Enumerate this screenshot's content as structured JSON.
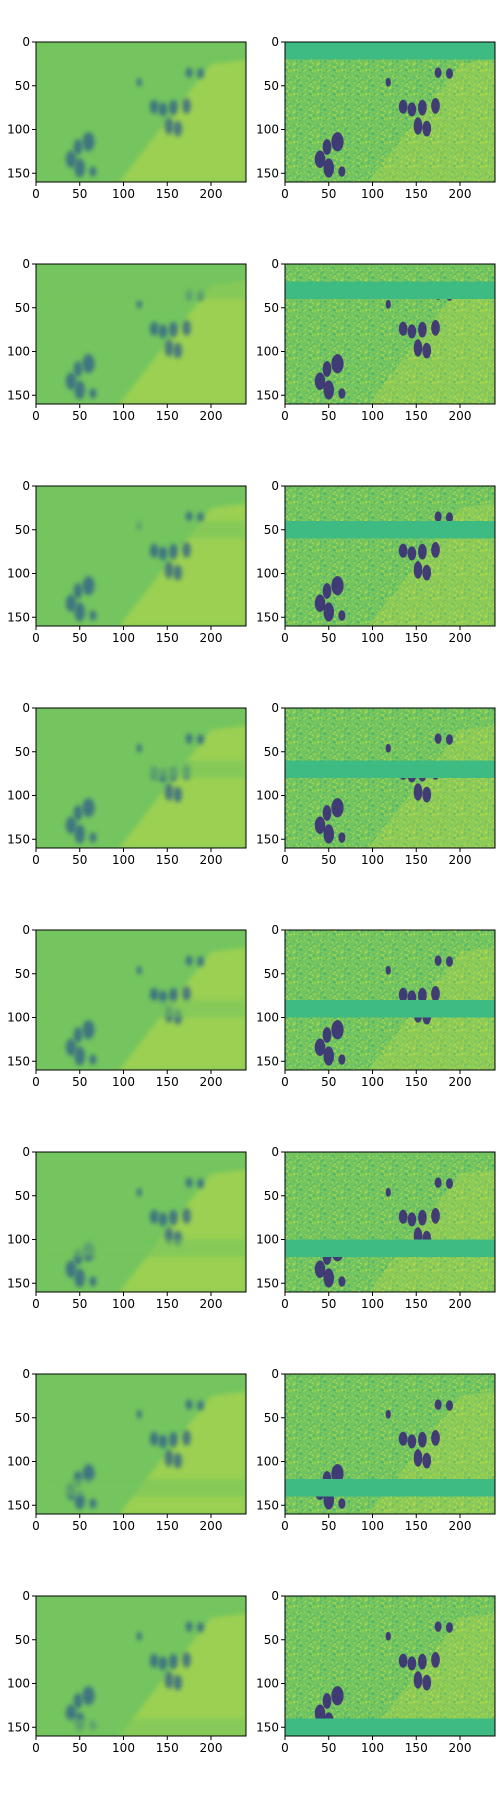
{
  "figure": {
    "rows": 8,
    "cols": 2,
    "colormap": "viridis",
    "background": "#ffffff"
  },
  "chart_data": {
    "type": "heatmap",
    "title": "",
    "xlabel": "",
    "ylabel": "",
    "image_shape": [
      160,
      240
    ],
    "x_ticks": [
      0,
      50,
      100,
      150,
      200
    ],
    "y_ticks": [
      0,
      50,
      100,
      150
    ],
    "xlim": [
      0,
      240
    ],
    "ylim": [
      160,
      0
    ],
    "colors": {
      "background": "#74c55f",
      "band": "#3dbb82",
      "bright": "#e3e53a",
      "dark": "#2d5b8c",
      "darkest": "#3a2c78",
      "mid": "#2aa57f"
    },
    "blobs": [
      [
        118,
        46,
        3,
        5
      ],
      [
        135,
        74,
        5,
        8
      ],
      [
        145,
        77,
        5,
        8
      ],
      [
        157,
        75,
        5,
        9
      ],
      [
        172,
        73,
        5,
        9
      ],
      [
        152,
        96,
        5,
        10
      ],
      [
        162,
        99,
        5,
        9
      ],
      [
        175,
        35,
        4,
        6
      ],
      [
        188,
        36,
        4,
        6
      ],
      [
        60,
        114,
        7,
        11
      ],
      [
        48,
        120,
        5,
        9
      ],
      [
        40,
        134,
        6,
        10
      ],
      [
        50,
        144,
        6,
        11
      ],
      [
        65,
        148,
        4,
        6
      ]
    ],
    "panels": [
      {
        "row": 0,
        "col": 0,
        "kind": "reconstruction",
        "mask_band": [
          0,
          20
        ]
      },
      {
        "row": 0,
        "col": 1,
        "kind": "masked_input",
        "mask_band": [
          0,
          20
        ]
      },
      {
        "row": 1,
        "col": 0,
        "kind": "reconstruction",
        "mask_band": [
          20,
          40
        ]
      },
      {
        "row": 1,
        "col": 1,
        "kind": "masked_input",
        "mask_band": [
          20,
          40
        ]
      },
      {
        "row": 2,
        "col": 0,
        "kind": "reconstruction",
        "mask_band": [
          40,
          60
        ]
      },
      {
        "row": 2,
        "col": 1,
        "kind": "masked_input",
        "mask_band": [
          40,
          60
        ]
      },
      {
        "row": 3,
        "col": 0,
        "kind": "reconstruction",
        "mask_band": [
          60,
          80
        ]
      },
      {
        "row": 3,
        "col": 1,
        "kind": "masked_input",
        "mask_band": [
          60,
          80
        ]
      },
      {
        "row": 4,
        "col": 0,
        "kind": "reconstruction",
        "mask_band": [
          80,
          100
        ]
      },
      {
        "row": 4,
        "col": 1,
        "kind": "masked_input",
        "mask_band": [
          80,
          100
        ]
      },
      {
        "row": 5,
        "col": 0,
        "kind": "reconstruction",
        "mask_band": [
          100,
          120
        ]
      },
      {
        "row": 5,
        "col": 1,
        "kind": "masked_input",
        "mask_band": [
          100,
          120
        ]
      },
      {
        "row": 6,
        "col": 0,
        "kind": "reconstruction",
        "mask_band": [
          120,
          140
        ]
      },
      {
        "row": 6,
        "col": 1,
        "kind": "masked_input",
        "mask_band": [
          120,
          140
        ]
      },
      {
        "row": 7,
        "col": 0,
        "kind": "reconstruction",
        "mask_band": [
          140,
          160
        ]
      },
      {
        "row": 7,
        "col": 1,
        "kind": "masked_input",
        "mask_band": [
          140,
          160
        ]
      }
    ]
  }
}
